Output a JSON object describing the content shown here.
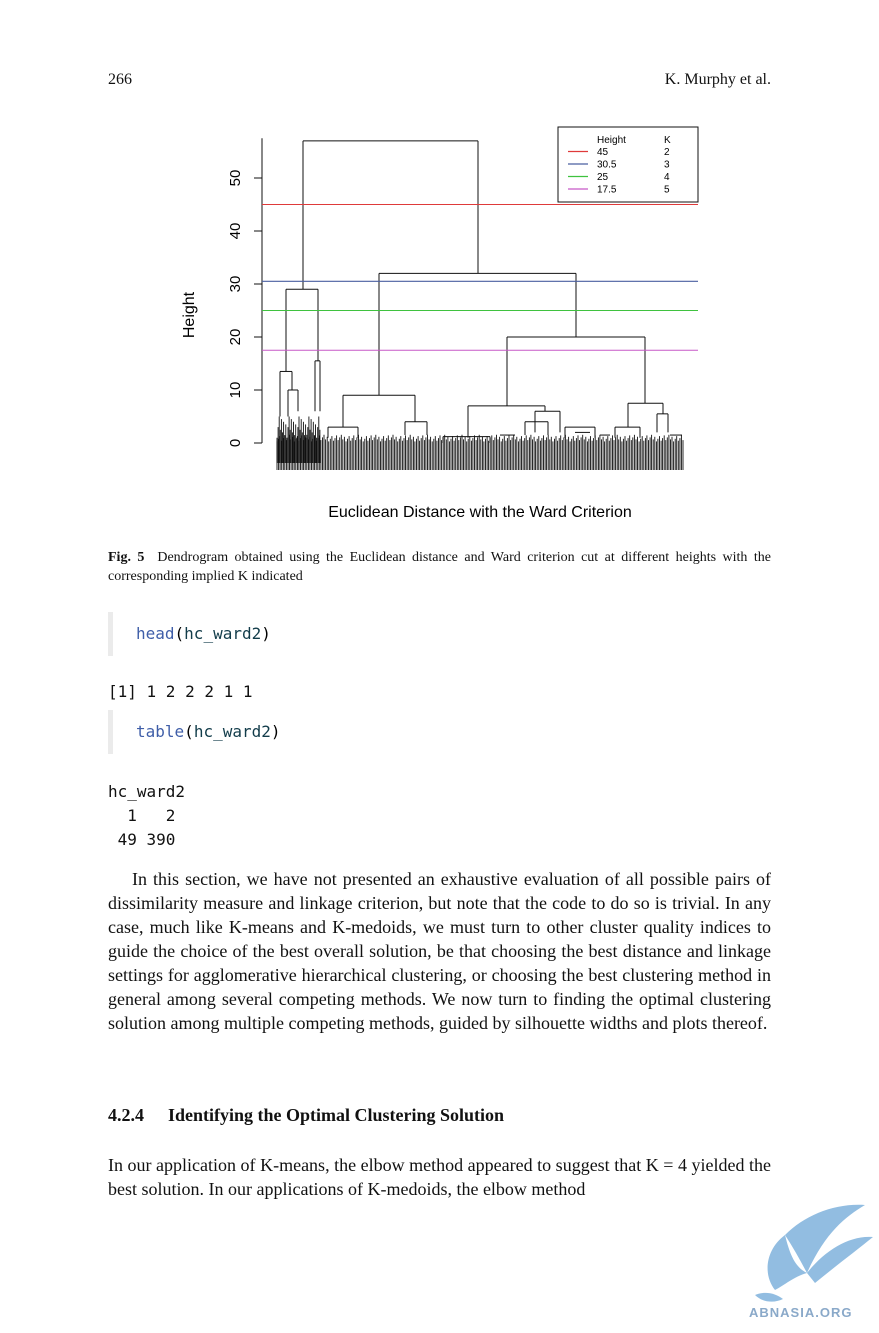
{
  "header": {
    "page_number": "266",
    "author": "K. Murphy et al."
  },
  "chart_data": {
    "type": "dendrogram",
    "title": "Euclidean Distance with the Ward Criterion",
    "xlabel": "",
    "ylabel": "Height",
    "ylim": [
      0,
      58
    ],
    "yticks": [
      0,
      10,
      20,
      30,
      40,
      50
    ],
    "root_height": 57,
    "merges": [
      {
        "name": "root",
        "height": 57
      },
      {
        "name": "right-cluster",
        "height": 32
      },
      {
        "name": "left-cluster",
        "height": 29
      },
      {
        "name": "right-sub",
        "height": 20
      },
      {
        "name": "left-mid-sub",
        "height": 9
      },
      {
        "name": "left-tall-sub",
        "height": 13.5
      },
      {
        "name": "left-tall-sub-2",
        "height": 15.5
      },
      {
        "name": "right-sub-mid",
        "height": 7
      },
      {
        "name": "right-sub-right",
        "height": 7.5
      }
    ],
    "cut_lines": [
      {
        "height": 45,
        "k": 2,
        "color": "#df3a3a"
      },
      {
        "height": 30.5,
        "k": 3,
        "color": "#4a5fa0"
      },
      {
        "height": 25,
        "k": 4,
        "color": "#3fc23f"
      },
      {
        "height": 17.5,
        "k": 5,
        "color": "#c759c7"
      }
    ],
    "legend": {
      "placement": "top-right",
      "col_height": "Height",
      "col_k": "K",
      "rows": [
        {
          "height": "45",
          "k": "2",
          "color": "#df3a3a"
        },
        {
          "height": "30.5",
          "k": "3",
          "color": "#4a5fa0"
        },
        {
          "height": "25",
          "k": "4",
          "color": "#3fc23f"
        },
        {
          "height": "17.5",
          "k": "5",
          "color": "#c759c7"
        }
      ]
    },
    "grid": false
  },
  "caption": {
    "label": "Fig. 5",
    "text": "Dendrogram obtained using the Euclidean distance and Ward criterion cut at different heights with the corresponding implied K indicated"
  },
  "code": [
    {
      "fn": "head",
      "arg": "hc_ward2"
    },
    {
      "fn": "table",
      "arg": "hc_ward2"
    }
  ],
  "output": {
    "head": "[1] 1 2 2 2 1 1",
    "table_name": "hc_ward2",
    "table_levels": "  1   2",
    "table_counts": " 49 390"
  },
  "paragraph1": "In this section, we have not presented an exhaustive evaluation of all possible pairs of dissimilarity measure and linkage criterion, but note that the code to do so is trivial. In any case, much like K-means and K-medoids, we must turn to other cluster quality indices to guide the choice of the best overall solution, be that choosing the best distance and linkage settings for agglomerative hierarchical clustering, or choosing the best clustering method in general among several competing methods. We now turn to finding the optimal clustering solution among multiple competing methods, guided by silhouette widths and plots thereof.",
  "section": {
    "number": "4.2.4",
    "title": "Identifying the Optimal Clustering Solution"
  },
  "paragraph2": "In our application of K-means, the elbow method appeared to suggest that K = 4 yielded the best solution. In our applications of K-medoids, the elbow method",
  "watermark": "ABNASIA.ORG"
}
